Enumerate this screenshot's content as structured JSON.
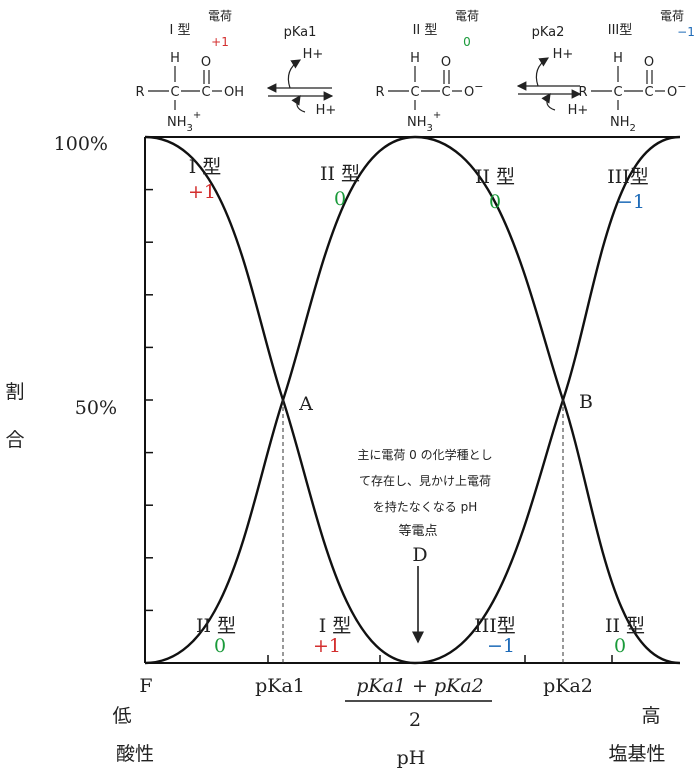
{
  "header": {
    "species": [
      {
        "type": "I 型",
        "charge_title": "電荷",
        "charge": "+1"
      },
      {
        "type": "II 型",
        "charge_title": "電荷",
        "charge": "0"
      },
      {
        "type": "III型",
        "charge_title": "電荷",
        "charge": "−1"
      }
    ],
    "equilibria": [
      {
        "constant": "pKa1",
        "proton_out": "H+",
        "proton_in": "H+"
      },
      {
        "constant": "pKa2",
        "proton_out": "H+",
        "proton_in": "H+"
      }
    ]
  },
  "structures": [
    {
      "h": "H",
      "r": "R",
      "c_alpha": "C",
      "c_carboxyl": "C",
      "o_double": "O",
      "o_single": {
        "base": "OH"
      },
      "amine": {
        "base": "NH",
        "sub": "3",
        "sup": "+"
      }
    },
    {
      "h": "H",
      "r": "R",
      "c_alpha": "C",
      "c_carboxyl": "C",
      "o_double": "O",
      "o_single": {
        "base": "O",
        "sup": "−"
      },
      "amine": {
        "base": "NH",
        "sub": "3",
        "sup": "+"
      }
    },
    {
      "h": "H",
      "r": "R",
      "c_alpha": "C",
      "c_carboxyl": "C",
      "o_double": "O",
      "o_single": {
        "base": "O",
        "sup": "−"
      },
      "amine": {
        "base": "NH",
        "sub": "2"
      }
    }
  ],
  "diagram": {
    "y_axis_label": [
      "割",
      "合"
    ],
    "y_ticks": [
      "100%",
      "50%"
    ],
    "upper_labels": [
      {
        "type": "I 型",
        "charge": "+1"
      },
      {
        "type": "II 型",
        "charge": "0"
      },
      {
        "type": "II 型",
        "charge": "0"
      },
      {
        "type": "III型",
        "charge": "−1"
      }
    ],
    "lower_labels": [
      {
        "type": "II 型",
        "charge": "0"
      },
      {
        "type": "I 型",
        "charge": "+1"
      },
      {
        "type": "III型",
        "charge": "−1"
      },
      {
        "type": "II 型",
        "charge": "0"
      }
    ],
    "points": [
      "A",
      "B"
    ],
    "note": [
      "主に電荷 0 の化学種とし",
      "て存在し、見かけ上電荷",
      "を持たなくなる pH"
    ],
    "isoelectric_label": "等電点",
    "isoelectric_point": "D",
    "x_labels": {
      "origin": "F",
      "pka1": "pKa1",
      "numerator": "pKa1 + pKa2",
      "denominator": "2",
      "pka2": "pKa2"
    },
    "low": "低",
    "high": "高",
    "acidic": "酸性",
    "x_axis_label": "pH",
    "basic": "塩基性"
  }
}
